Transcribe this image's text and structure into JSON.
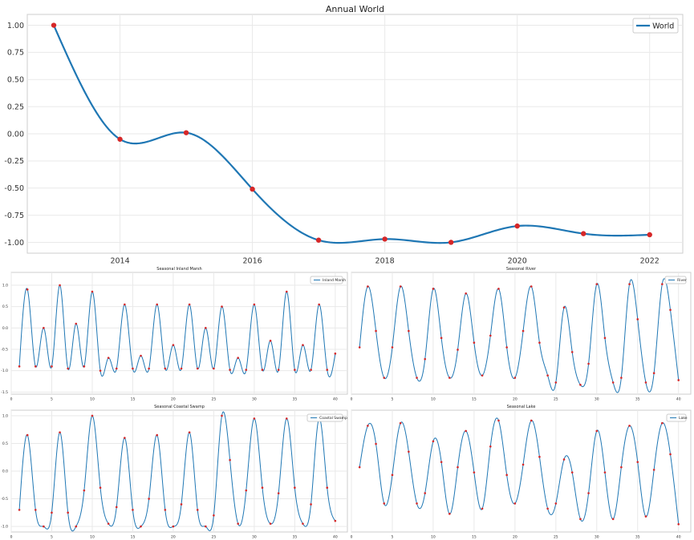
{
  "colors": {
    "line": "#1f77b4",
    "marker": "#d62728"
  },
  "chart_data": [
    {
      "type": "line",
      "title": "Annual World",
      "series": [
        {
          "name": "World",
          "x": [
            2013,
            2014,
            2015,
            2016,
            2017,
            2018,
            2019,
            2020,
            2021,
            2022
          ],
          "y": [
            1.0,
            -0.05,
            0.01,
            -0.51,
            -0.98,
            -0.97,
            -1.0,
            -0.85,
            -0.92,
            -0.93
          ]
        }
      ],
      "xticks": [
        2014,
        2016,
        2018,
        2020,
        2022
      ],
      "yticks": [
        1.0,
        0.75,
        0.5,
        0.25,
        0.0,
        -0.25,
        -0.5,
        -0.75,
        -1.0
      ],
      "ytick_labels": [
        "1.00",
        "0.75",
        "0.50",
        "0.25",
        "0.00",
        "-0.25",
        "-0.50",
        "-0.75",
        "-1.00"
      ],
      "xlim": [
        2012.6,
        2022.5
      ],
      "ylim": [
        -1.1,
        1.1
      ],
      "grid": true,
      "legend": "top-right"
    },
    {
      "type": "line",
      "title": "Seasonal Inland Marsh",
      "series": [
        {
          "name": "Inland Marsh",
          "x": [
            1,
            2,
            3,
            4,
            5,
            6,
            7,
            8,
            9,
            10,
            11,
            12,
            13,
            14,
            15,
            16,
            17,
            18,
            19,
            20,
            21,
            22,
            23,
            24,
            25,
            26,
            27,
            28,
            29,
            30,
            31,
            32,
            33,
            34,
            35,
            36,
            37,
            38,
            39,
            40
          ],
          "y": [
            -0.9,
            0.9,
            -0.9,
            0.0,
            -0.9,
            1.0,
            -0.95,
            0.1,
            -0.9,
            0.85,
            -1.0,
            -0.7,
            -0.95,
            0.55,
            -0.95,
            -0.65,
            -0.95,
            0.55,
            -0.95,
            -0.4,
            -0.95,
            0.55,
            -0.95,
            0.0,
            -0.95,
            0.5,
            -0.98,
            -0.7,
            -0.98,
            0.55,
            -0.98,
            -0.3,
            -0.98,
            0.85,
            -0.98,
            -0.4,
            -0.98,
            0.55,
            -0.98,
            -0.6
          ]
        }
      ],
      "xticks": [
        0,
        5,
        10,
        15,
        20,
        25,
        30,
        35,
        40
      ],
      "yticks": [
        1.0,
        0.5,
        0.0,
        -0.5,
        -1.0,
        -1.5
      ],
      "ytick_labels": [
        "1.0",
        "0.5",
        "0.0",
        "-0.5",
        "-1.0",
        "-1.5"
      ],
      "xlim": [
        0,
        41.5
      ],
      "ylim": [
        -1.55,
        1.3
      ],
      "grid": true,
      "legend": "top-right"
    },
    {
      "type": "line",
      "title": "Seasonal River",
      "series": [
        {
          "name": "River",
          "x": [
            1,
            2,
            3,
            4,
            5,
            6,
            7,
            8,
            9,
            10,
            11,
            12,
            13,
            14,
            15,
            16,
            17,
            18,
            19,
            20,
            21,
            22,
            23,
            24,
            25,
            26,
            27,
            28,
            29,
            30,
            31,
            32,
            33,
            34,
            35,
            36,
            37,
            38,
            39,
            40
          ],
          "y": [
            -0.3,
            1.0,
            0.05,
            -0.95,
            -0.3,
            1.0,
            0.05,
            -0.95,
            -0.55,
            0.95,
            -0.1,
            -0.95,
            -0.35,
            0.85,
            -0.2,
            -0.9,
            -0.05,
            0.95,
            -0.3,
            -0.95,
            0.05,
            1.0,
            -0.2,
            -0.9,
            -1.05,
            0.55,
            -0.4,
            -1.1,
            -0.65,
            1.05,
            -0.1,
            -1.05,
            -0.95,
            1.05,
            0.3,
            -1.05,
            -0.85,
            1.05,
            0.5,
            -1.0
          ]
        }
      ],
      "xticks": [
        0,
        5,
        10,
        15,
        20,
        25,
        30,
        35,
        40
      ],
      "yticks": [],
      "ytick_labels": [],
      "xlim": [
        0,
        41.5
      ],
      "ylim": [
        -1.3,
        1.3
      ],
      "grid": true,
      "legend": "top-right"
    },
    {
      "type": "line",
      "title": "Seasonal Coastal Swamp",
      "series": [
        {
          "name": "Coastal Swamp",
          "x": [
            1,
            2,
            3,
            4,
            5,
            6,
            7,
            8,
            9,
            10,
            11,
            12,
            13,
            14,
            15,
            16,
            17,
            18,
            19,
            20,
            21,
            22,
            23,
            24,
            25,
            26,
            27,
            28,
            29,
            30,
            31,
            32,
            33,
            34,
            35,
            36,
            37,
            38,
            39,
            40
          ],
          "y": [
            -0.7,
            0.65,
            -0.7,
            -1.0,
            -0.75,
            0.7,
            -0.75,
            -1.0,
            -0.35,
            1.0,
            -0.3,
            -0.95,
            -0.65,
            0.6,
            -0.7,
            -1.0,
            -0.5,
            0.65,
            -0.7,
            -1.0,
            -0.6,
            0.7,
            -0.7,
            -1.0,
            -0.8,
            1.0,
            0.2,
            -0.95,
            -0.35,
            0.95,
            -0.3,
            -0.95,
            -0.4,
            0.95,
            -0.3,
            -0.95,
            -0.6,
            0.95,
            -0.3,
            -0.9
          ]
        }
      ],
      "xticks": [
        0,
        5,
        10,
        15,
        20,
        25,
        30,
        35,
        40
      ],
      "yticks": [
        1.0,
        0.5,
        0.0,
        -0.5,
        -1.0
      ],
      "ytick_labels": [
        "1.0",
        "0.5",
        "0.0",
        "-0.5",
        "-1.0"
      ],
      "xlim": [
        0,
        41.5
      ],
      "ylim": [
        -1.1,
        1.1
      ],
      "grid": true,
      "legend": "top-right"
    },
    {
      "type": "line",
      "title": "Seasonal Lake",
      "series": [
        {
          "name": "Lake",
          "x": [
            1,
            2,
            3,
            4,
            5,
            6,
            7,
            8,
            9,
            10,
            11,
            12,
            13,
            14,
            15,
            16,
            17,
            18,
            19,
            20,
            21,
            22,
            23,
            24,
            25,
            26,
            27,
            28,
            29,
            30,
            31,
            32,
            33,
            34,
            35,
            36,
            37,
            38,
            39,
            40
          ],
          "y": [
            0.05,
            0.85,
            0.5,
            -0.65,
            -0.1,
            0.9,
            0.35,
            -0.65,
            -0.45,
            0.55,
            0.15,
            -0.85,
            0.05,
            0.75,
            -0.05,
            -0.75,
            0.45,
            0.95,
            -0.1,
            -0.65,
            0.1,
            0.95,
            0.25,
            -0.75,
            -0.65,
            0.2,
            -0.05,
            -0.95,
            -0.45,
            0.75,
            -0.05,
            -0.95,
            0.05,
            0.85,
            0.15,
            -0.9,
            0.0,
            0.9,
            0.3,
            -1.05
          ]
        }
      ],
      "xticks": [
        0,
        5,
        10,
        15,
        20,
        25,
        30,
        35,
        40
      ],
      "yticks": [],
      "ytick_labels": [],
      "xlim": [
        0,
        41.5
      ],
      "ylim": [
        -1.2,
        1.15
      ],
      "grid": true,
      "legend": "top-right"
    }
  ]
}
